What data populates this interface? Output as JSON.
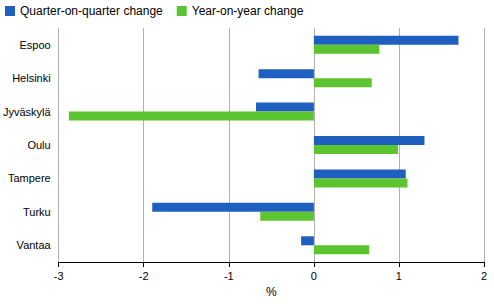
{
  "chart_data": {
    "type": "bar",
    "orientation": "horizontal",
    "categories": [
      "Espoo",
      "Helsinki",
      "Jyväskylä",
      "Oulu",
      "Tampere",
      "Turku",
      "Vantaa"
    ],
    "series": [
      {
        "name": "Quarter-on-quarter change",
        "color": "#1f5fbf",
        "values": [
          1.7,
          -0.65,
          -0.68,
          1.3,
          1.08,
          -1.9,
          -0.15
        ]
      },
      {
        "name": "Year-on-year change",
        "color": "#5cc42f",
        "values": [
          0.77,
          0.68,
          -2.88,
          0.99,
          1.1,
          -0.63,
          0.65
        ]
      }
    ],
    "x_label": "%",
    "xlim": [
      -3,
      2
    ],
    "xticks": [
      -3,
      -2,
      -1,
      0,
      1,
      2
    ],
    "grid": true,
    "legend": "top-left"
  }
}
